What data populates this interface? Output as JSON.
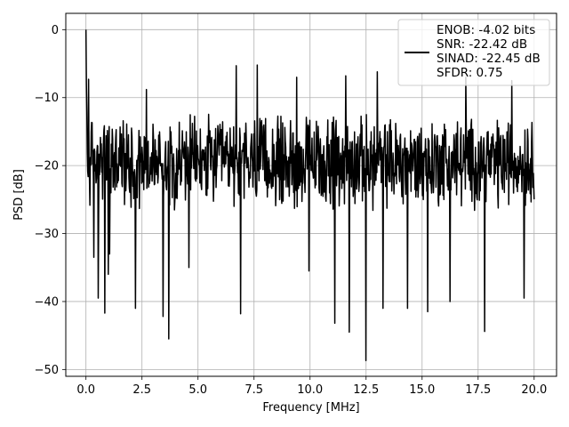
{
  "chart_data": {
    "type": "line",
    "title": "",
    "xlabel": "Frequency [MHz]",
    "ylabel": "PSD [dB]",
    "xlim": [
      -0.9,
      21.0
    ],
    "ylim": [
      -51.0,
      2.4
    ],
    "grid": true,
    "x_ticks": [
      0.0,
      2.5,
      5.0,
      7.5,
      10.0,
      12.5,
      15.0,
      17.5,
      20.0
    ],
    "x_tick_labels": [
      "0.0",
      "2.5",
      "5.0",
      "7.5",
      "10.0",
      "12.5",
      "15.0",
      "17.5",
      "20.0"
    ],
    "y_ticks": [
      0,
      -10,
      -20,
      -30,
      -40,
      -50
    ],
    "y_tick_labels": [
      "0",
      "−10",
      "−20",
      "−30",
      "−40",
      "−50"
    ],
    "series": [
      {
        "color": "#000000",
        "x_range": [
          0.0,
          20.0
        ],
        "points": 1024,
        "peak": {
          "x": 0.0,
          "y": 0.0
        },
        "typical_band": [
          -27,
          -12
        ],
        "min_envelope": [
          {
            "x": 0.35,
            "y": -33.5
          },
          {
            "x": 0.55,
            "y": -39.5
          },
          {
            "x": 0.85,
            "y": -41.7
          },
          {
            "x": 1.05,
            "y": -33.0
          },
          {
            "x": 1.0,
            "y": -36.0
          },
          {
            "x": 2.2,
            "y": -41.0
          },
          {
            "x": 3.45,
            "y": -42.2
          },
          {
            "x": 3.7,
            "y": -45.5
          },
          {
            "x": 4.6,
            "y": -35.0
          },
          {
            "x": 6.9,
            "y": -41.8
          },
          {
            "x": 9.95,
            "y": -35.5
          },
          {
            "x": 11.1,
            "y": -43.2
          },
          {
            "x": 11.75,
            "y": -44.5
          },
          {
            "x": 12.5,
            "y": -48.7
          },
          {
            "x": 13.25,
            "y": -41.0
          },
          {
            "x": 14.35,
            "y": -41.0
          },
          {
            "x": 15.25,
            "y": -41.5
          },
          {
            "x": 16.25,
            "y": -40.0
          },
          {
            "x": 17.8,
            "y": -44.4
          },
          {
            "x": 19.55,
            "y": -39.5
          }
        ],
        "max_envelope": [
          {
            "x": 0.12,
            "y": -7.3
          },
          {
            "x": 2.7,
            "y": -8.8
          },
          {
            "x": 6.7,
            "y": -5.3
          },
          {
            "x": 7.65,
            "y": -5.2
          },
          {
            "x": 9.4,
            "y": -7.0
          },
          {
            "x": 11.6,
            "y": -6.8
          },
          {
            "x": 13.0,
            "y": -6.2
          },
          {
            "x": 16.95,
            "y": -7.0
          },
          {
            "x": 19.0,
            "y": -7.5
          }
        ]
      }
    ],
    "legend": {
      "placement": "top-right",
      "entries": [
        "ENOB: -4.02 bits",
        "SNR: -22.42 dB",
        "SINAD: -22.45 dB",
        "SFDR: 0.75"
      ]
    }
  }
}
